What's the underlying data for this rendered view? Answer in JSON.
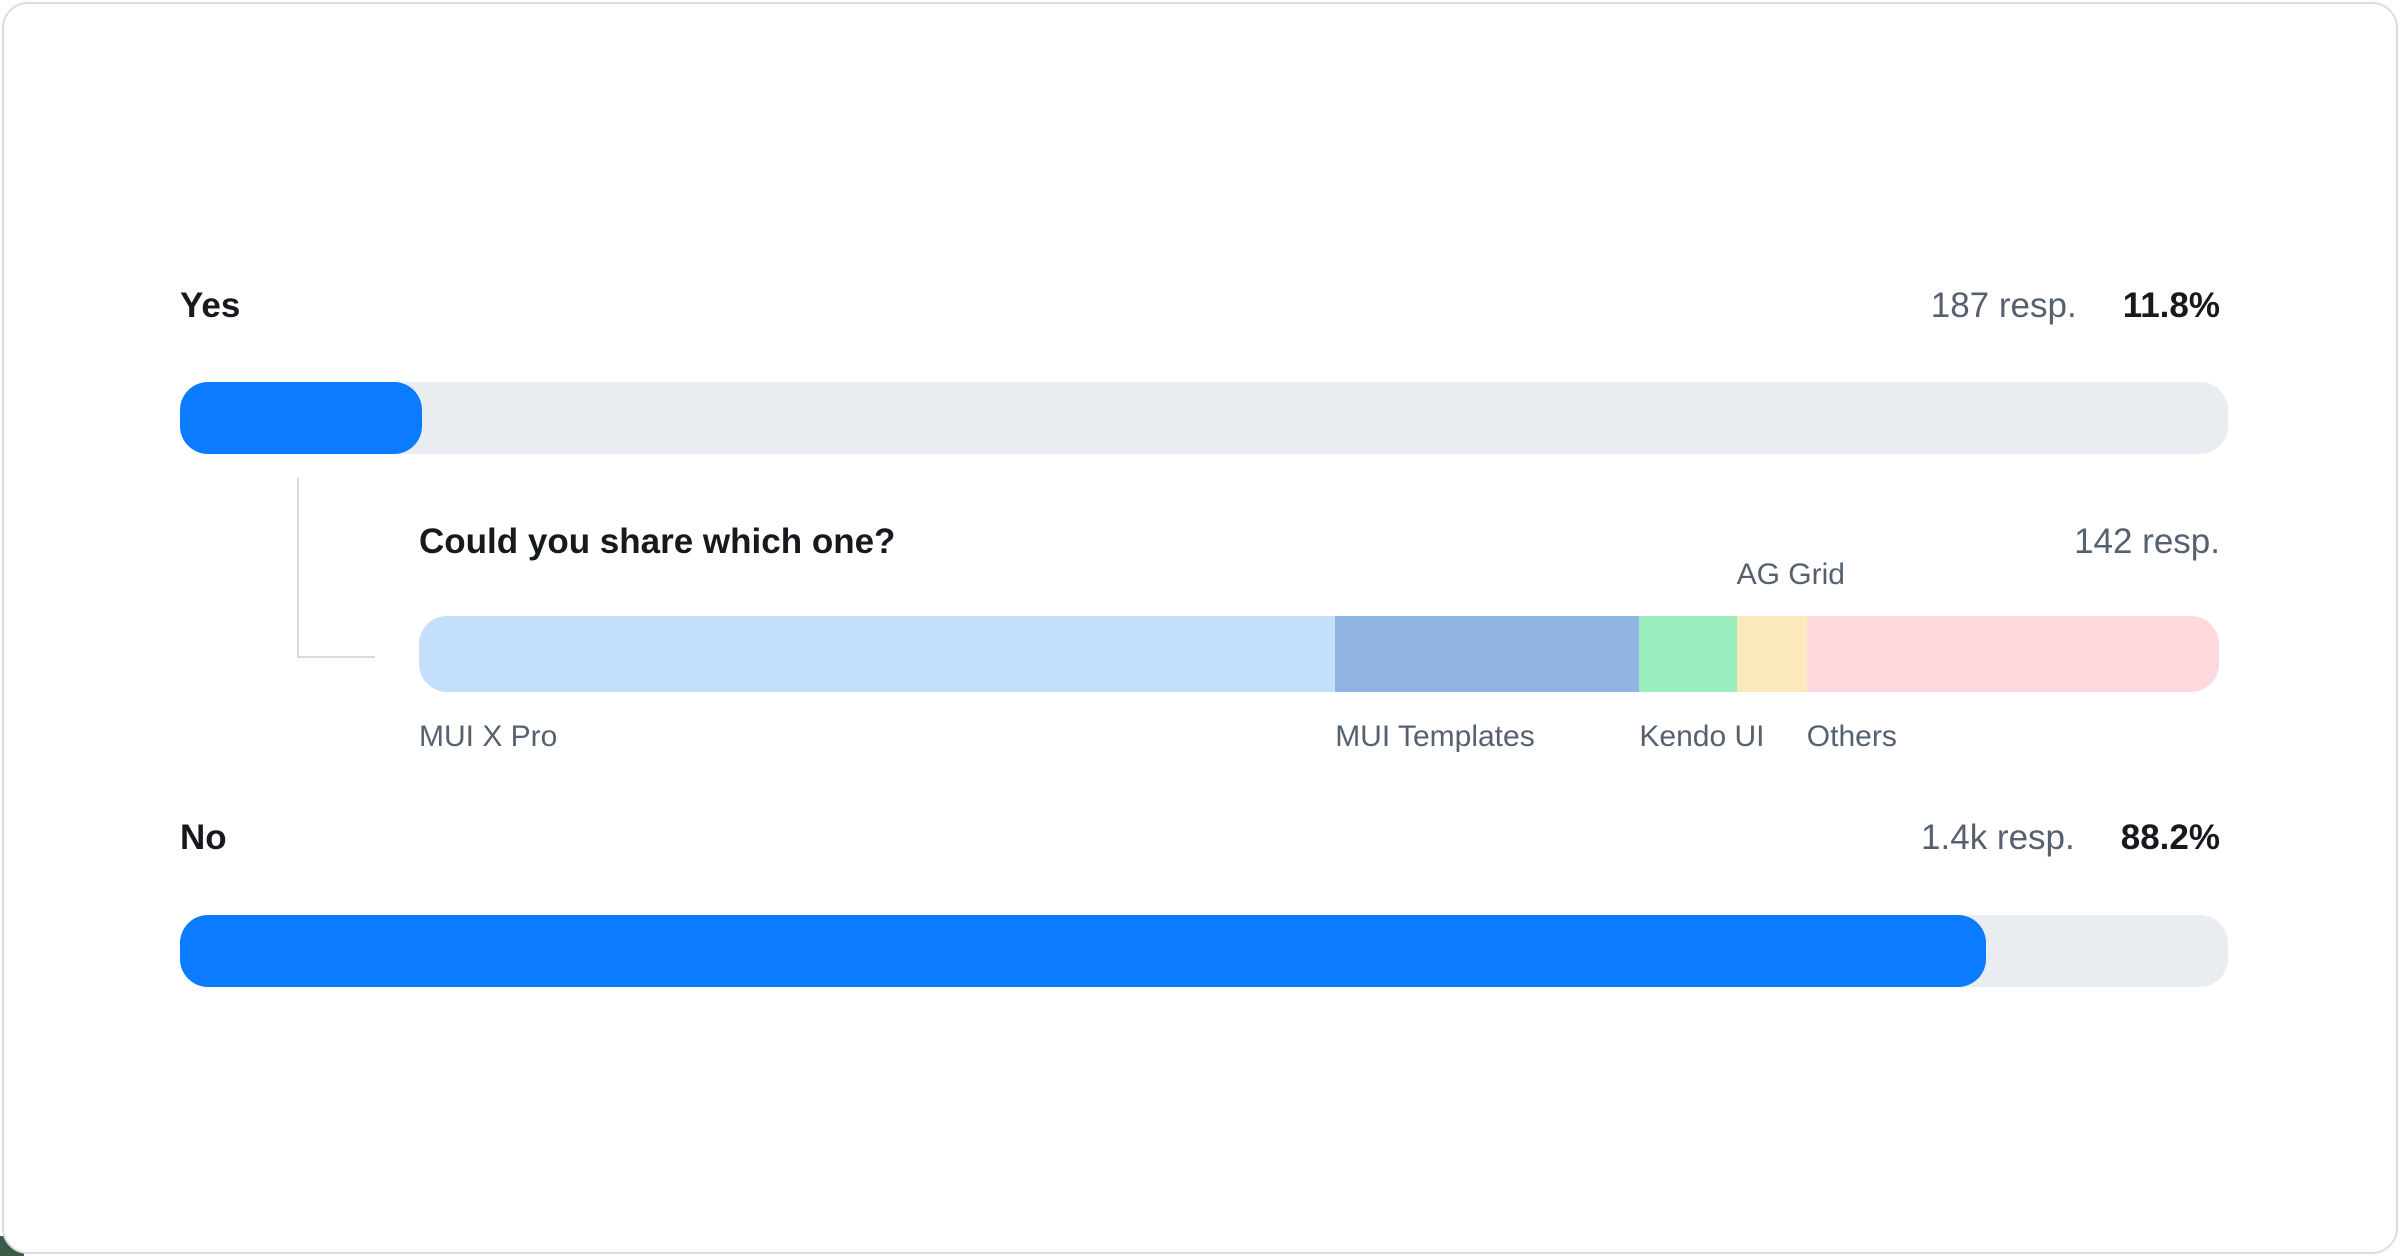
{
  "chart_data": {
    "type": "bar",
    "title": "",
    "description": "Survey answer results with response counts, percentages and a follow-up stacked distribution bar",
    "categories": [
      "Yes",
      "No"
    ],
    "values": [
      11.8,
      88.2
    ],
    "percent_labels": [
      "11.8%",
      "88.2%"
    ],
    "response_labels": [
      "187 resp.",
      "1.4k resp."
    ],
    "bar_color": "#0b7cff",
    "track_color": "#e9edf2",
    "followup": {
      "type": "stacked-bar",
      "parent_category": "Yes",
      "question": "Could you share which one?",
      "response_label": "142 resp.",
      "segments": [
        {
          "label": "MUI X Pro",
          "percent": 50.9,
          "color": "#c3dffc",
          "label_position": "below"
        },
        {
          "label": "MUI Templates",
          "percent": 16.9,
          "color": "#90b5e2",
          "label_position": "below"
        },
        {
          "label": "Kendo UI",
          "percent": 5.4,
          "color": "#9aeebe",
          "label_position": "below"
        },
        {
          "label": "AG Grid",
          "percent": 3.9,
          "color": "#fdeabc",
          "label_position": "above"
        },
        {
          "label": "Others",
          "percent": 22.9,
          "color": "#ffd9de",
          "label_position": "below"
        }
      ]
    },
    "layout": {
      "legend": "none",
      "grid": false,
      "orientation": "horizontal"
    },
    "connector_color": "#d7dce2",
    "text_dark": "#16191d",
    "text_gray": "#566170",
    "card_border": "#d8dde3"
  }
}
